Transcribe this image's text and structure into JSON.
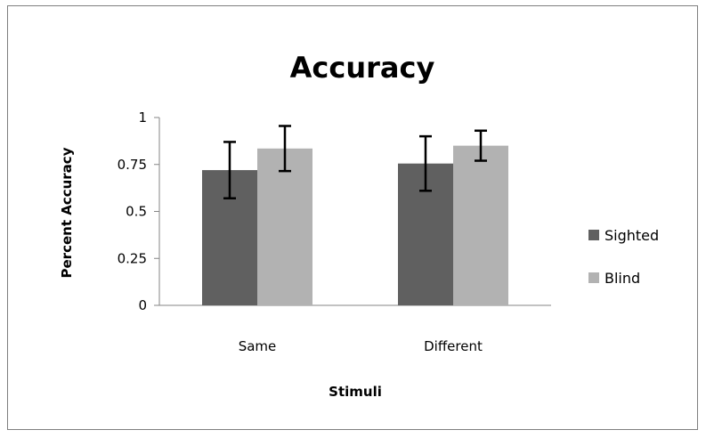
{
  "chart_data": {
    "type": "bar",
    "title": "Accuracy",
    "xlabel": "Stimuli",
    "ylabel": "Percent Accuracy",
    "categories": [
      "Same",
      "Different"
    ],
    "series": [
      {
        "name": "Sighted",
        "color": "#606060",
        "values": [
          0.72,
          0.755
        ],
        "errors": [
          0.15,
          0.145
        ]
      },
      {
        "name": "Blind",
        "color": "#b2b2b2",
        "values": [
          0.835,
          0.85
        ],
        "errors": [
          0.12,
          0.08
        ]
      }
    ],
    "ylim": [
      0,
      1
    ],
    "yticks": [
      0,
      0.25,
      0.5,
      0.75,
      1
    ],
    "ytick_labels": [
      "0",
      "0.25",
      "0.5",
      "0.75",
      "1"
    ],
    "grid": false,
    "legend_position": "right",
    "error_bars": true
  }
}
